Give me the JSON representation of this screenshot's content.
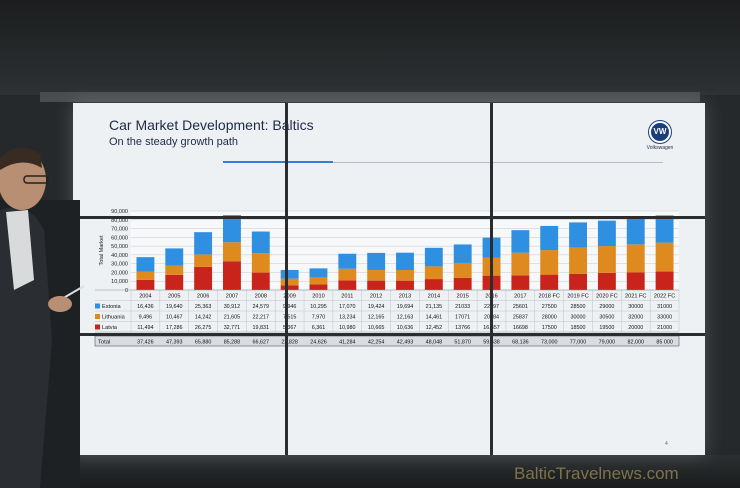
{
  "slide": {
    "title": "Car Market Development: Baltics",
    "subtitle": "On the steady growth path",
    "logo_text": "Volkswagen",
    "page_number": "4"
  },
  "watermark": "BalticTravelnews.com",
  "colors": {
    "estonia": "#2f8fe0",
    "lithuania": "#de8a1e",
    "latvia": "#c8241c",
    "brand": "#1a3e7a"
  },
  "chart_data": {
    "type": "bar",
    "stacked": true,
    "ylabel": "Total Market",
    "ylim": [
      0,
      90000
    ],
    "yticks": [
      "0",
      "10,000",
      "20,000",
      "30,000",
      "40,000",
      "50,000",
      "60,000",
      "70,000",
      "80,000",
      "90,000"
    ],
    "categories": [
      "2004",
      "2005",
      "2006",
      "2007",
      "2008",
      "2009",
      "2010",
      "2011",
      "2012",
      "2013",
      "2014",
      "2015",
      "2016",
      "2017",
      "2018 FC",
      "2019 FC",
      "2020 FC",
      "2021 FC",
      "2022 FC"
    ],
    "series": [
      {
        "name": "Latvia",
        "color": "#c8241c",
        "values": [
          11494,
          17286,
          26275,
          32771,
          19831,
          5367,
          6361,
          10980,
          10665,
          10636,
          12452,
          13766,
          16357,
          16698,
          17500,
          18500,
          19500,
          20000,
          21000
        ],
        "labels": [
          "11,494",
          "17,286",
          "26,275",
          "32,771",
          "19,831",
          "5,367",
          "6,361",
          "10,980",
          "10,665",
          "10,636",
          "12,452",
          "13766",
          "16,357",
          "16698",
          "17500",
          "18500",
          "19500",
          "20000",
          "21000"
        ]
      },
      {
        "name": "Lithuania",
        "color": "#de8a1e",
        "values": [
          9496,
          10467,
          14242,
          21605,
          22217,
          7515,
          7970,
          13234,
          12165,
          12163,
          14461,
          17071,
          20284,
          25837,
          28000,
          30000,
          30500,
          32000,
          33000
        ],
        "labels": [
          "9,496",
          "10,467",
          "14,242",
          "21,605",
          "22,217",
          "7,515",
          "7,970",
          "13,234",
          "12,165",
          "12,163",
          "14,461",
          "17071",
          "20284",
          "25837",
          "28000",
          "30000",
          "30500",
          "32000",
          "33000"
        ]
      },
      {
        "name": "Estonia",
        "color": "#2f8fe0",
        "values": [
          16436,
          19640,
          25363,
          30912,
          24579,
          9946,
          10295,
          17070,
          19424,
          19694,
          21135,
          21033,
          22997,
          25601,
          27500,
          28500,
          29000,
          30000,
          31000
        ],
        "labels": [
          "16,436",
          "19,640",
          "25,363",
          "30,912",
          "24,579",
          "9,946",
          "10,295",
          "17,070",
          "19,424",
          "19,694",
          "21,135",
          "21033",
          "22997",
          "25601",
          "27500",
          "28500",
          "29000",
          "30000",
          "31000"
        ]
      }
    ],
    "table_rows": [
      {
        "name": "Estonia",
        "series_index": 2
      },
      {
        "name": "Lithuania",
        "series_index": 1
      },
      {
        "name": "Latvia",
        "series_index": 0
      }
    ],
    "total_label": "Total",
    "totals": [
      "37,426",
      "47,393",
      "65,880",
      "85,288",
      "66,627",
      "22,828",
      "24,626",
      "41,284",
      "42,254",
      "42,493",
      "48,048",
      "51,870",
      "59,638",
      "68,136",
      "73,000",
      "77,000",
      "79,000",
      "82,000",
      "85 000"
    ]
  }
}
